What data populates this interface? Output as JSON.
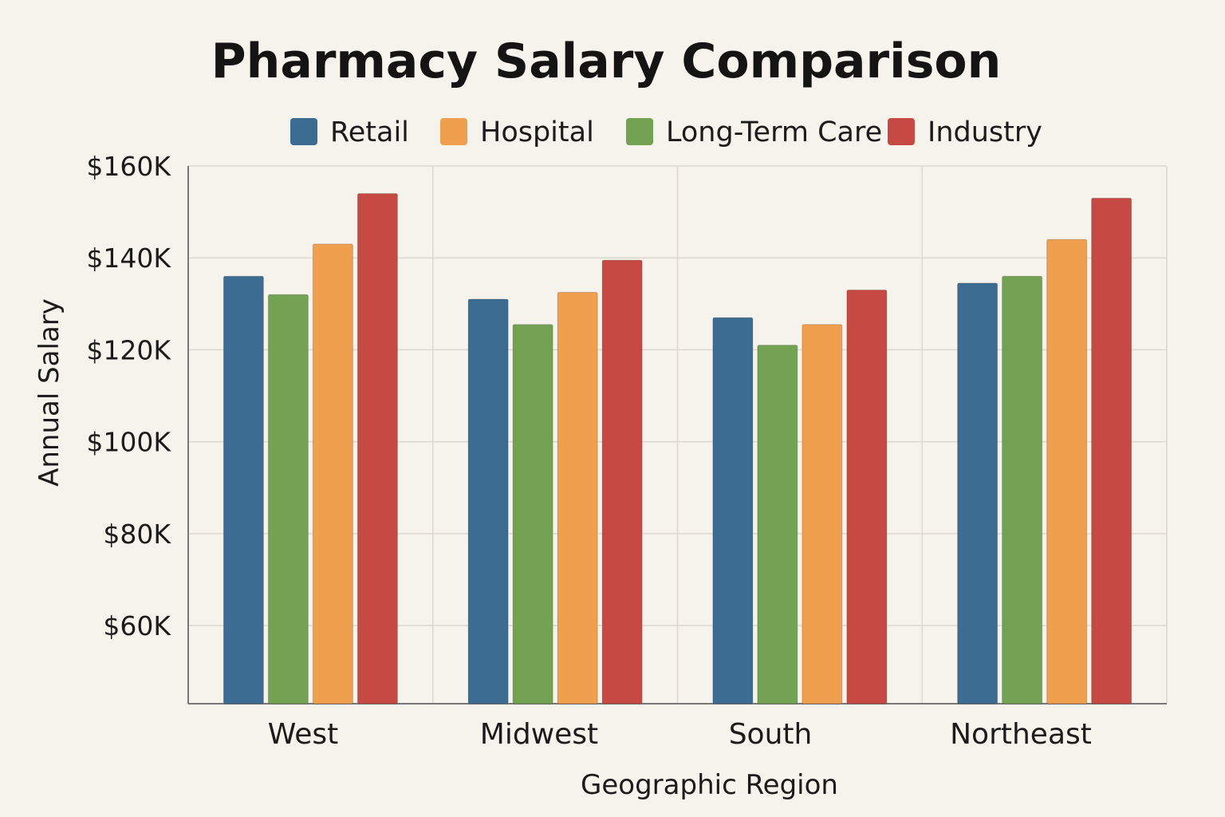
{
  "chart_data": {
    "type": "bar",
    "title": "Pharmacy Salary Comparison",
    "xlabel": "Geographic Region",
    "ylabel": "Annual Salary",
    "categories": [
      "West",
      "Midwest",
      "South",
      "Northeast"
    ],
    "bar_order": [
      "Retail",
      "Long-Term Care",
      "Hospital",
      "Industry"
    ],
    "series": [
      {
        "name": "Retail",
        "color": "#3d6c93",
        "values": [
          136000,
          131000,
          127000,
          134500
        ]
      },
      {
        "name": "Hospital",
        "color": "#ef9f4d",
        "values": [
          143000,
          132500,
          125500,
          144000
        ]
      },
      {
        "name": "Long-Term Care",
        "color": "#72a252",
        "values": [
          132000,
          125500,
          121000,
          136000
        ]
      },
      {
        "name": "Industry",
        "color": "#c64a43",
        "values": [
          154000,
          139500,
          133000,
          153000
        ]
      }
    ],
    "ylim": [
      43000,
      160000
    ],
    "yticks": [
      60000,
      80000,
      100000,
      120000,
      140000,
      160000
    ],
    "ytick_labels": [
      "$60K",
      "$80K",
      "$100K",
      "$120K",
      "$140K",
      "$160K"
    ],
    "grid": true,
    "legend_position": "top"
  }
}
